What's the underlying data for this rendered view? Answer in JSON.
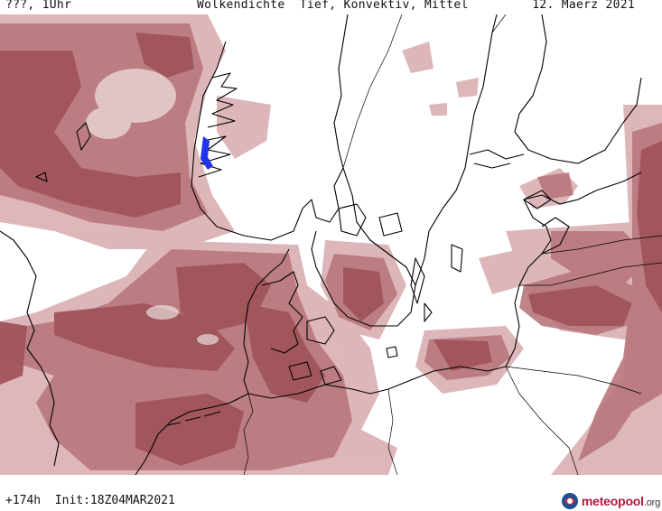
{
  "header": {
    "left": "???, 1Uhr",
    "title": "Wolkendichte  Tief, Konvektiv, Mittel",
    "date": "12. Maerz 2021"
  },
  "footer": {
    "forecast": "+174h  Init:18Z04MAR2021"
  },
  "logo": {
    "brand": "meteopool",
    "tld": ".org"
  },
  "colors": {
    "cloud_dense": "#a0545a",
    "cloud_medium": "#b8777c",
    "cloud_light": "#d8aaae",
    "coast": "#000000",
    "lake_highlight": "#2233ee",
    "background": "#ffffff"
  }
}
